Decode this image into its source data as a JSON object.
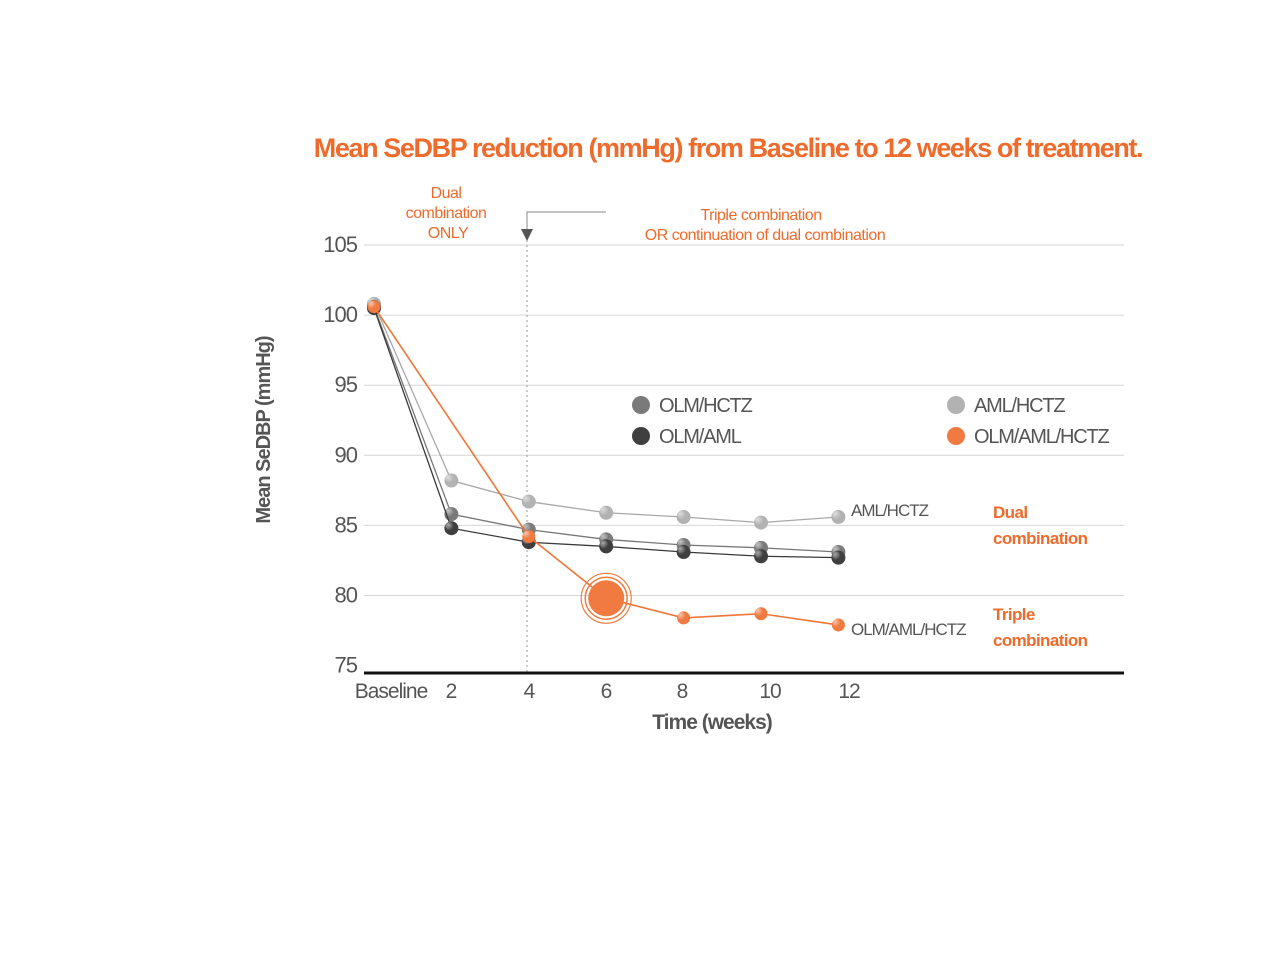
{
  "chart_data": {
    "type": "line",
    "title": "Mean SeDBP reduction (mmHg) from Baseline to 12 weeks of treatment.",
    "xlabel": "Time (weeks)",
    "ylabel": "Mean SeDBP (mmHg)",
    "ylim": [
      75,
      105
    ],
    "yticks": [
      "105",
      "100",
      "95",
      "90",
      "85",
      "80",
      "75"
    ],
    "xticks": [
      "Baseline",
      "2",
      "4",
      "6",
      "8",
      "10",
      "12"
    ],
    "grid": true,
    "legend_position": "inside-upper",
    "annotations": {
      "phase1": [
        "Dual",
        "combination",
        "ONLY"
      ],
      "phase2": [
        "Triple combination",
        "OR continuation of dual combination"
      ],
      "group_dual": [
        "Dual",
        "combination"
      ],
      "group_triple": [
        "Triple",
        "combination"
      ]
    },
    "series": [
      {
        "name": "AML/HCTZ",
        "color": "#b2b2b2",
        "line_color": "#a8a8a8",
        "x": [
          0,
          2,
          4,
          6,
          8,
          10,
          12
        ],
        "values": [
          100.8,
          88.2,
          86.7,
          85.9,
          85.6,
          85.2,
          85.6
        ],
        "end_label": "AML/HCTZ"
      },
      {
        "name": "OLM/HCTZ",
        "color": "#7a7a7a",
        "line_color": "#777777",
        "x": [
          0,
          2,
          4,
          6,
          8,
          10,
          12
        ],
        "values": [
          100.6,
          85.8,
          84.7,
          84.0,
          83.6,
          83.4,
          83.1
        ]
      },
      {
        "name": "OLM/AML",
        "color": "#3f3f3f",
        "line_color": "#3a3a3a",
        "x": [
          0,
          2,
          4,
          6,
          8,
          10,
          12
        ],
        "values": [
          100.5,
          84.8,
          83.8,
          83.5,
          83.1,
          82.8,
          82.7
        ]
      },
      {
        "name": "OLM/AML/HCTZ",
        "color": "#f07a3f",
        "line_color": "#ef7535",
        "x": [
          0,
          4,
          6,
          8,
          10,
          12
        ],
        "values": [
          100.6,
          84.2,
          79.8,
          78.4,
          78.7,
          77.9
        ],
        "highlight_index": 2,
        "end_label": "OLM/AML/HCTZ"
      }
    ]
  }
}
